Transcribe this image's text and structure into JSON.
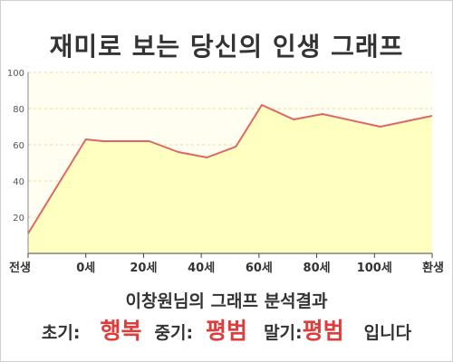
{
  "title": "재미로 보는 당신의 인생 그래프",
  "chart_data": {
    "type": "area",
    "categories": [
      "전생",
      "0세",
      "20세",
      "40세",
      "60세",
      "80세",
      "100세",
      "환생"
    ],
    "points": [
      {
        "x": 0.0,
        "y": 11
      },
      {
        "x": 1.0,
        "y": 63
      },
      {
        "x": 1.3,
        "y": 62
      },
      {
        "x": 2.1,
        "y": 62
      },
      {
        "x": 2.6,
        "y": 56
      },
      {
        "x": 3.1,
        "y": 53
      },
      {
        "x": 3.6,
        "y": 59
      },
      {
        "x": 4.05,
        "y": 82
      },
      {
        "x": 4.6,
        "y": 74
      },
      {
        "x": 5.1,
        "y": 77
      },
      {
        "x": 6.1,
        "y": 70
      },
      {
        "x": 7.0,
        "y": 76
      }
    ],
    "y_ticks": [
      "20",
      "40",
      "60",
      "80",
      "100"
    ],
    "ylim": [
      0,
      100
    ],
    "colors": {
      "line": "#e06666",
      "fill": "#ffffc0",
      "plot_bg": "#fffef0",
      "grid": "#e6d9a0"
    }
  },
  "result": {
    "title": "이창원님의 그래프 분석결과",
    "early_label": "초기:",
    "early_value": "행복",
    "mid_label": "중기:",
    "mid_value": "평범",
    "late_label": "말기:",
    "late_value": "평범",
    "suffix": "입니다"
  }
}
